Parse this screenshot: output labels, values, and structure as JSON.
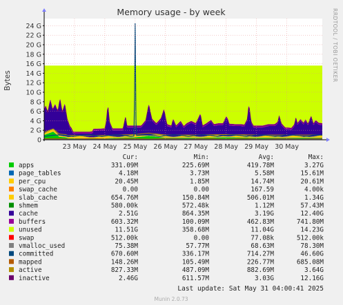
{
  "chart_data": {
    "type": "area",
    "title": "Memory usage - by week",
    "ylabel": "Bytes",
    "side_label": "RRDTOOL / TOBI OETIKER",
    "y_ticks": [
      "0",
      "2 G",
      "4 G",
      "6 G",
      "8 G",
      "10 G",
      "12 G",
      "14 G",
      "16 G",
      "18 G",
      "20 G",
      "22 G",
      "24 G"
    ],
    "y_tick_values": [
      0,
      2,
      4,
      6,
      8,
      10,
      12,
      14,
      16,
      18,
      20,
      22,
      24
    ],
    "ylim": [
      0,
      25.5
    ],
    "y_unit": "GB",
    "x_ticks": [
      "23 May",
      "24 May",
      "25 May",
      "26 May",
      "27 May",
      "28 May",
      "29 May",
      "30 May"
    ],
    "x_tick_days": [
      1,
      2,
      3,
      4,
      5,
      6,
      7,
      8
    ],
    "xlim_days": [
      0,
      9.17
    ],
    "grid": true,
    "series_colors": {
      "apps": "#00cc00",
      "page_tables": "#0066b3",
      "per_cpu": "#ffcc00",
      "swap_cache": "#ff8000",
      "slab_cache": "#ffcc00",
      "shmem": "#008f00",
      "cache": "#330099",
      "buffers": "#990099",
      "unused": "#ccff00",
      "swap": "#ff0000",
      "vmalloc_used": "#808080",
      "committed": "#00487d",
      "mapped": "#b35a00",
      "active": "#b38f00",
      "inactive": "#6b006b"
    },
    "approx_series": {
      "unused_top": 15.6,
      "cache_profile": [
        [
          0.0,
          6.5
        ],
        [
          0.05,
          7.3
        ],
        [
          0.12,
          6.0
        ],
        [
          0.2,
          8.7
        ],
        [
          0.28,
          6.5
        ],
        [
          0.36,
          7.6
        ],
        [
          0.45,
          6.2
        ],
        [
          0.52,
          8.9
        ],
        [
          0.6,
          6.0
        ],
        [
          0.68,
          7.8
        ],
        [
          0.76,
          4.5
        ],
        [
          0.84,
          3.0
        ],
        [
          0.9,
          2.5
        ],
        [
          0.95,
          1.7
        ],
        [
          1.0,
          1.7
        ],
        [
          1.5,
          1.7
        ],
        [
          1.6,
          1.8
        ],
        [
          1.62,
          2.3
        ],
        [
          2.0,
          2.4
        ],
        [
          2.05,
          4.0
        ],
        [
          2.1,
          7.6
        ],
        [
          2.15,
          4.0
        ],
        [
          2.25,
          2.4
        ],
        [
          2.6,
          2.4
        ],
        [
          2.62,
          3.0
        ],
        [
          2.68,
          5.0
        ],
        [
          2.73,
          3.0
        ],
        [
          3.0,
          3.0
        ],
        [
          3.2,
          3.0
        ],
        [
          3.35,
          4.2
        ],
        [
          3.45,
          7.7
        ],
        [
          3.55,
          4.5
        ],
        [
          3.7,
          3.5
        ],
        [
          3.85,
          4.6
        ],
        [
          3.95,
          6.6
        ],
        [
          4.05,
          3.3
        ],
        [
          4.2,
          3.0
        ],
        [
          4.25,
          4.5
        ],
        [
          4.35,
          3.0
        ],
        [
          4.5,
          4.0
        ],
        [
          4.6,
          2.9
        ],
        [
          4.7,
          3.5
        ],
        [
          4.85,
          4.0
        ],
        [
          5.0,
          3.5
        ],
        [
          5.15,
          5.6
        ],
        [
          5.22,
          3.0
        ],
        [
          5.35,
          3.5
        ],
        [
          5.5,
          4.2
        ],
        [
          5.6,
          3.3
        ],
        [
          5.75,
          3.5
        ],
        [
          5.9,
          3.5
        ],
        [
          6.0,
          5.0
        ],
        [
          6.05,
          4.5
        ],
        [
          6.1,
          3.4
        ],
        [
          6.3,
          3.3
        ],
        [
          6.5,
          3.3
        ],
        [
          6.6,
          3.2
        ],
        [
          6.7,
          4.5
        ],
        [
          6.75,
          7.7
        ],
        [
          6.82,
          4.0
        ],
        [
          6.9,
          3.0
        ],
        [
          7.05,
          3.0
        ],
        [
          7.2,
          3.0
        ],
        [
          7.4,
          3.3
        ],
        [
          7.6,
          3.3
        ],
        [
          7.7,
          3.8
        ],
        [
          7.75,
          5.2
        ],
        [
          7.82,
          3.5
        ],
        [
          7.95,
          2.6
        ],
        [
          8.05,
          2.6
        ],
        [
          8.15,
          2.5
        ],
        [
          8.25,
          3.3
        ],
        [
          8.3,
          4.8
        ],
        [
          8.35,
          3.5
        ],
        [
          8.45,
          4.4
        ],
        [
          8.55,
          3.6
        ],
        [
          8.62,
          4.3
        ],
        [
          8.7,
          3.4
        ],
        [
          8.8,
          5.1
        ],
        [
          8.88,
          3.4
        ],
        [
          8.95,
          4.2
        ],
        [
          9.05,
          3.6
        ],
        [
          9.17,
          3.5
        ]
      ],
      "committed_spike": {
        "day": 3.0,
        "value": 24.5
      },
      "apps_profile": [
        [
          0.0,
          1.0
        ],
        [
          0.3,
          1.7
        ],
        [
          0.5,
          0.6
        ],
        [
          0.7,
          0.5
        ],
        [
          0.8,
          0.3
        ],
        [
          1.0,
          0.3
        ],
        [
          2.0,
          0.3
        ],
        [
          3.0,
          0.5
        ],
        [
          3.45,
          0.8
        ],
        [
          4.0,
          0.4
        ],
        [
          5.0,
          0.4
        ],
        [
          6.0,
          0.5
        ],
        [
          7.0,
          0.4
        ],
        [
          8.0,
          0.4
        ],
        [
          9.17,
          0.4
        ]
      ]
    },
    "legend": {
      "headers": [
        "Cur:",
        "Min:",
        "Avg:",
        "Max:"
      ],
      "rows": [
        {
          "name": "apps",
          "color": "#00cc00",
          "cur": "331.09M",
          "min": "225.69M",
          "avg": "419.78M",
          "max": "3.27G"
        },
        {
          "name": "page_tables",
          "color": "#0066b3",
          "cur": "4.18M",
          "min": "3.73M",
          "avg": "5.58M",
          "max": "15.61M"
        },
        {
          "name": "per_cpu",
          "color": "#ffcc00",
          "cur": "20.45M",
          "min": "1.85M",
          "avg": "14.74M",
          "max": "20.61M"
        },
        {
          "name": "swap_cache",
          "color": "#ff8000",
          "cur": "0.00",
          "min": "0.00",
          "avg": "167.59",
          "max": "4.00k"
        },
        {
          "name": "slab_cache",
          "color": "#ffcc00",
          "cur": "654.76M",
          "min": "150.84M",
          "avg": "506.01M",
          "max": "1.34G"
        },
        {
          "name": "shmem",
          "color": "#008f00",
          "cur": "580.00k",
          "min": "572.48k",
          "avg": "1.12M",
          "max": "57.43M"
        },
        {
          "name": "cache",
          "color": "#330099",
          "cur": "2.51G",
          "min": "864.35M",
          "avg": "3.19G",
          "max": "12.40G"
        },
        {
          "name": "buffers",
          "color": "#990099",
          "cur": "603.32M",
          "min": "100.09M",
          "avg": "462.83M",
          "max": "741.80M"
        },
        {
          "name": "unused",
          "color": "#ccff00",
          "cur": "11.51G",
          "min": "358.68M",
          "avg": "11.04G",
          "max": "14.23G"
        },
        {
          "name": "swap",
          "color": "#ff0000",
          "cur": "512.00k",
          "min": "0.00",
          "avg": "77.08k",
          "max": "512.00k"
        },
        {
          "name": "vmalloc_used",
          "color": "#808080",
          "cur": "75.38M",
          "min": "57.77M",
          "avg": "68.63M",
          "max": "78.30M"
        },
        {
          "name": "committed",
          "color": "#00487d",
          "cur": "670.60M",
          "min": "336.17M",
          "avg": "714.27M",
          "max": "46.60G"
        },
        {
          "name": "mapped",
          "color": "#b35a00",
          "cur": "148.26M",
          "min": "105.49M",
          "avg": "226.77M",
          "max": "685.08M"
        },
        {
          "name": "active",
          "color": "#b38f00",
          "cur": "827.33M",
          "min": "487.09M",
          "avg": "882.69M",
          "max": "3.64G"
        },
        {
          "name": "inactive",
          "color": "#6b006b",
          "cur": "2.46G",
          "min": "611.57M",
          "avg": "3.03G",
          "max": "12.16G"
        }
      ]
    },
    "last_update": "Last update: Sat May 31 04:00:41 2025",
    "footer": "Munin 2.0.73"
  }
}
